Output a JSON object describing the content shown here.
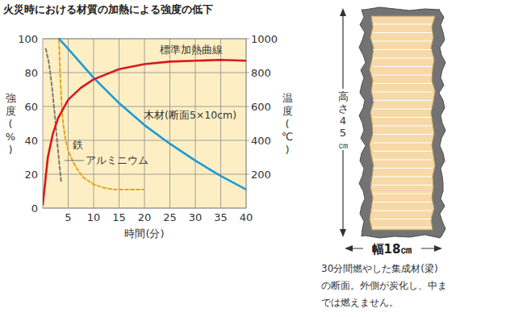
{
  "chart_data": {
    "type": "line",
    "title": "火災時における材質の加熱による強度の低下",
    "x_label": "時間(分)",
    "y_label": "強度(%)",
    "y2_label": "温度(℃)",
    "xlim": [
      0,
      40
    ],
    "xticks": [
      5,
      10,
      15,
      20,
      25,
      30,
      35,
      40
    ],
    "ylim": [
      0,
      100
    ],
    "yticks": [
      0,
      20,
      40,
      60,
      80,
      100
    ],
    "y2lim": [
      0,
      1000
    ],
    "y2ticks": [
      200,
      400,
      600,
      800,
      1000
    ],
    "grid": true,
    "series": [
      {
        "name": "標準加熱曲線",
        "color": "#d7191f",
        "axis": "y2",
        "line_style": "solid",
        "x": [
          0,
          1,
          2,
          3,
          5,
          7.5,
          10,
          15,
          20,
          25,
          30,
          35,
          40
        ],
        "values": [
          20,
          300,
          440,
          530,
          640,
          710,
          760,
          820,
          850,
          865,
          870,
          875,
          870
        ]
      },
      {
        "name": "木材(断面5×10cm)",
        "color": "#1c9ad6",
        "line_style": "solid",
        "x": [
          3.2,
          5,
          10,
          15,
          20,
          25,
          30,
          35,
          40
        ],
        "values": [
          100,
          94,
          77,
          62,
          49,
          38,
          28,
          19,
          11
        ]
      },
      {
        "name": "鉄",
        "color": "#e9a21a",
        "line_style": "dashed",
        "x": [
          3.2,
          3.4,
          3.7,
          4,
          4.5,
          5,
          6,
          7,
          8,
          10,
          12,
          14,
          17,
          19.8
        ],
        "values": [
          99,
          80,
          62,
          50,
          40,
          34,
          27,
          22,
          18,
          14,
          12,
          11,
          11,
          11
        ]
      },
      {
        "name": "アルミニウム",
        "color": "#7a7a7a",
        "line_style": "dashed",
        "x": [
          0.6,
          1.2,
          1.8,
          2.4,
          3.0,
          3.6
        ],
        "values": [
          94,
          86,
          72,
          54,
          34,
          16
        ]
      }
    ]
  },
  "illustration": {
    "height_label": "高さ45㎝",
    "width_label": "幅18㎝",
    "caption": [
      "30分間燃やした集成材(梁)",
      "の断面。外側が炭化し、中ま",
      "では燃えません。"
    ]
  }
}
